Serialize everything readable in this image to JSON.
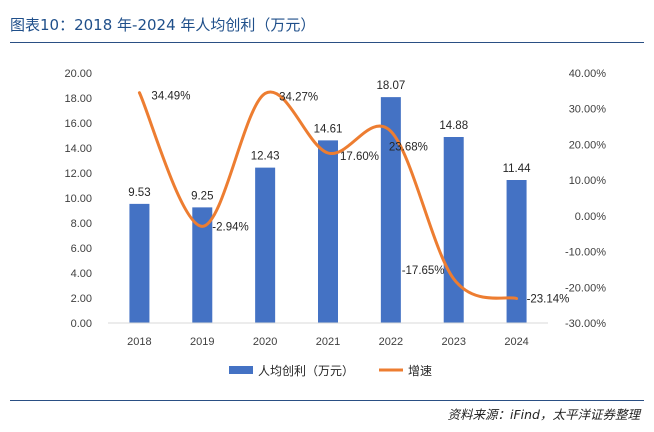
{
  "title": "图表10：2018 年-2024 年人均创利（万元）",
  "source": "资料来源：iFind，太平洋证券整理",
  "colors": {
    "bar": "#4472c4",
    "line": "#ed7d31",
    "title": "#1f4f8a"
  },
  "chart_data": {
    "type": "bar+line",
    "categories": [
      "2018",
      "2019",
      "2020",
      "2021",
      "2022",
      "2023",
      "2024"
    ],
    "series": [
      {
        "name": "人均创利（万元）",
        "type": "bar",
        "axis": "left",
        "values": [
          9.53,
          9.25,
          12.43,
          14.61,
          18.07,
          14.88,
          11.44
        ],
        "labels": [
          "9.53",
          "9.25",
          "12.43",
          "14.61",
          "18.07",
          "14.88",
          "11.44"
        ]
      },
      {
        "name": "增速",
        "type": "line",
        "smooth": true,
        "axis": "right",
        "values": [
          34.49,
          -2.94,
          34.27,
          17.6,
          23.68,
          -17.65,
          -23.14
        ],
        "labels": [
          "34.49%",
          "-2.94%",
          "34.27%",
          "17.60%",
          "23.68%",
          "-17.65%",
          "-23.14%"
        ]
      }
    ],
    "y_left": {
      "min": 0,
      "max": 20,
      "step": 2,
      "ticks": [
        "0.00",
        "2.00",
        "4.00",
        "6.00",
        "8.00",
        "10.00",
        "12.00",
        "14.00",
        "16.00",
        "18.00",
        "20.00"
      ]
    },
    "y_right": {
      "min": -30,
      "max": 40,
      "step": 10,
      "ticks": [
        "-30.00%",
        "-20.00%",
        "-10.00%",
        "0.00%",
        "10.00%",
        "20.00%",
        "30.00%",
        "40.00%"
      ]
    },
    "legend": {
      "position": "bottom",
      "items": [
        "人均创利（万元）",
        "增速"
      ]
    },
    "grid": false
  }
}
